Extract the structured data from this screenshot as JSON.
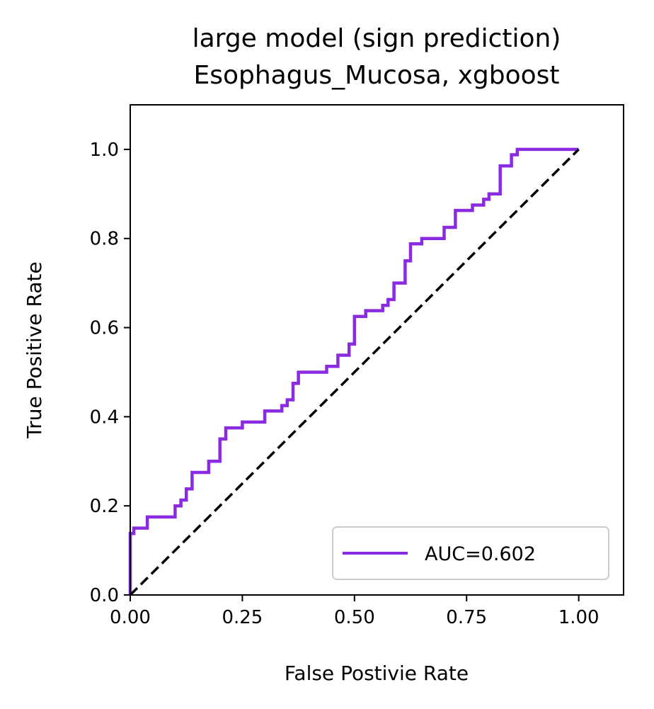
{
  "chart_data": {
    "type": "line",
    "title": "large model (sign prediction)",
    "subtitle": "Esophagus_Mucosa, xgboost",
    "xlabel": "False Postivie Rate",
    "ylabel": "True Positive Rate",
    "xlim": [
      0.0,
      1.1
    ],
    "ylim": [
      0.0,
      1.1
    ],
    "xticks": [
      "0.00",
      "0.25",
      "0.50",
      "0.75",
      "1.00"
    ],
    "yticks": [
      "0.0",
      "0.2",
      "0.4",
      "0.6",
      "0.8",
      "1.0"
    ],
    "grid": false,
    "legend_position": "lower-right",
    "series": [
      {
        "name": "AUC=0.602",
        "color": "#8A2BE2",
        "style": "solid",
        "points": [
          [
            0.0,
            0.0
          ],
          [
            0.0,
            0.138
          ],
          [
            0.008,
            0.138
          ],
          [
            0.008,
            0.15
          ],
          [
            0.038,
            0.15
          ],
          [
            0.038,
            0.175
          ],
          [
            0.1,
            0.175
          ],
          [
            0.1,
            0.2
          ],
          [
            0.113,
            0.2
          ],
          [
            0.113,
            0.213
          ],
          [
            0.125,
            0.213
          ],
          [
            0.125,
            0.238
          ],
          [
            0.138,
            0.238
          ],
          [
            0.138,
            0.275
          ],
          [
            0.175,
            0.275
          ],
          [
            0.175,
            0.3
          ],
          [
            0.2,
            0.3
          ],
          [
            0.2,
            0.35
          ],
          [
            0.213,
            0.35
          ],
          [
            0.213,
            0.375
          ],
          [
            0.25,
            0.375
          ],
          [
            0.25,
            0.388
          ],
          [
            0.3,
            0.388
          ],
          [
            0.3,
            0.413
          ],
          [
            0.338,
            0.413
          ],
          [
            0.338,
            0.425
          ],
          [
            0.35,
            0.425
          ],
          [
            0.35,
            0.438
          ],
          [
            0.363,
            0.438
          ],
          [
            0.363,
            0.475
          ],
          [
            0.375,
            0.475
          ],
          [
            0.375,
            0.5
          ],
          [
            0.438,
            0.5
          ],
          [
            0.438,
            0.513
          ],
          [
            0.463,
            0.513
          ],
          [
            0.463,
            0.538
          ],
          [
            0.488,
            0.538
          ],
          [
            0.488,
            0.563
          ],
          [
            0.5,
            0.563
          ],
          [
            0.5,
            0.625
          ],
          [
            0.525,
            0.625
          ],
          [
            0.525,
            0.638
          ],
          [
            0.563,
            0.638
          ],
          [
            0.563,
            0.65
          ],
          [
            0.575,
            0.65
          ],
          [
            0.575,
            0.663
          ],
          [
            0.588,
            0.663
          ],
          [
            0.588,
            0.7
          ],
          [
            0.613,
            0.7
          ],
          [
            0.613,
            0.75
          ],
          [
            0.625,
            0.75
          ],
          [
            0.625,
            0.788
          ],
          [
            0.65,
            0.788
          ],
          [
            0.65,
            0.8
          ],
          [
            0.7,
            0.8
          ],
          [
            0.7,
            0.825
          ],
          [
            0.725,
            0.825
          ],
          [
            0.725,
            0.863
          ],
          [
            0.763,
            0.863
          ],
          [
            0.763,
            0.875
          ],
          [
            0.788,
            0.875
          ],
          [
            0.788,
            0.888
          ],
          [
            0.8,
            0.888
          ],
          [
            0.8,
            0.9
          ],
          [
            0.825,
            0.9
          ],
          [
            0.825,
            0.963
          ],
          [
            0.85,
            0.963
          ],
          [
            0.85,
            0.988
          ],
          [
            0.863,
            0.988
          ],
          [
            0.863,
            1.0
          ],
          [
            1.0,
            1.0
          ]
        ]
      },
      {
        "name": "",
        "color": "#000000",
        "style": "dashed",
        "points": [
          [
            0.0,
            0.0
          ],
          [
            1.0,
            1.0
          ]
        ]
      }
    ]
  }
}
